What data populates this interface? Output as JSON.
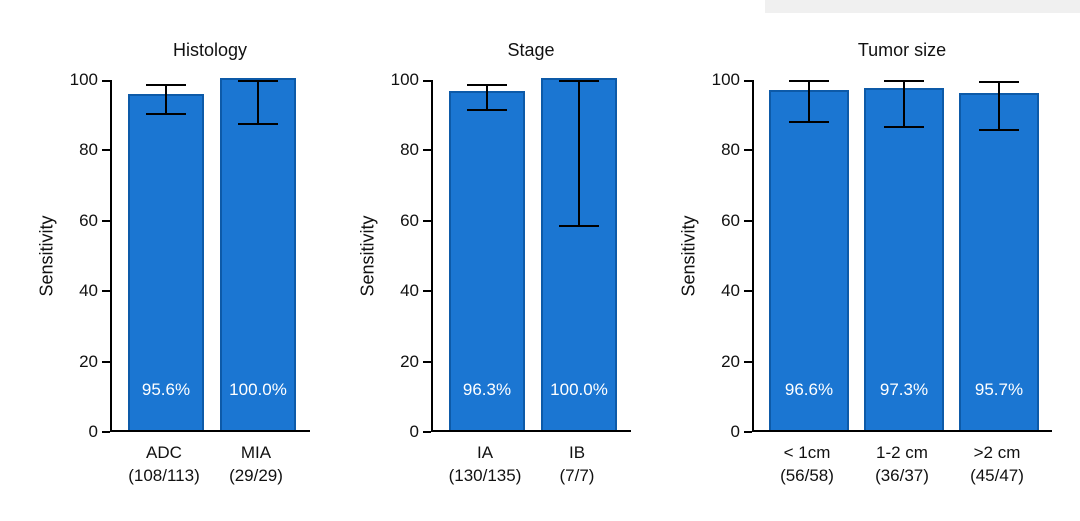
{
  "figure": {
    "background": "#ffffff"
  },
  "colors": {
    "bar_fill": "#1b76d2",
    "bar_edge": "#0d5aa8",
    "axis": "#000000",
    "error_bar": "#000000",
    "bar_label_text": "#ffffff",
    "top_strip": "#f0f0f0"
  },
  "chart_data": [
    {
      "type": "bar",
      "title": "Histology",
      "ylabel": "Sensitivity",
      "ylim": [
        0,
        100
      ],
      "yticks": [
        0,
        20,
        40,
        60,
        80,
        100
      ],
      "categories": [
        "ADC",
        "MIA"
      ],
      "category_sublabels": [
        "(108/113)",
        "(29/29)"
      ],
      "values": [
        95.6,
        100.0
      ],
      "bar_labels": [
        "95.6%",
        "100.0%"
      ],
      "error_low": [
        90.3,
        87.6
      ],
      "error_high": [
        98.6,
        100
      ],
      "grid": false,
      "legend": false
    },
    {
      "type": "bar",
      "title": "Stage",
      "ylabel": "Sensitivity",
      "ylim": [
        0,
        100
      ],
      "yticks": [
        0,
        20,
        40,
        60,
        80,
        100
      ],
      "categories": [
        "IA",
        "IB"
      ],
      "category_sublabels": [
        "(130/135)",
        "(7/7)"
      ],
      "values": [
        96.3,
        100.0
      ],
      "bar_labels": [
        "96.3%",
        "100.0%"
      ],
      "error_low": [
        91.4,
        58.5
      ],
      "error_high": [
        98.7,
        100
      ],
      "grid": false,
      "legend": false
    },
    {
      "type": "bar",
      "title": "Tumor size",
      "ylabel": "Sensitivity",
      "ylim": [
        0,
        100
      ],
      "yticks": [
        0,
        20,
        40,
        60,
        80,
        100
      ],
      "categories": [
        "< 1cm",
        "1-2 cm",
        ">2 cm"
      ],
      "category_sublabels": [
        "(56/58)",
        "(36/37)",
        "(45/47)"
      ],
      "values": [
        96.6,
        97.3,
        95.7
      ],
      "bar_labels": [
        "96.6%",
        "97.3%",
        "95.7%"
      ],
      "error_low": [
        88.0,
        86.6,
        85.8
      ],
      "error_high": [
        100,
        99.9,
        99.4
      ],
      "grid": false,
      "legend": false
    }
  ]
}
